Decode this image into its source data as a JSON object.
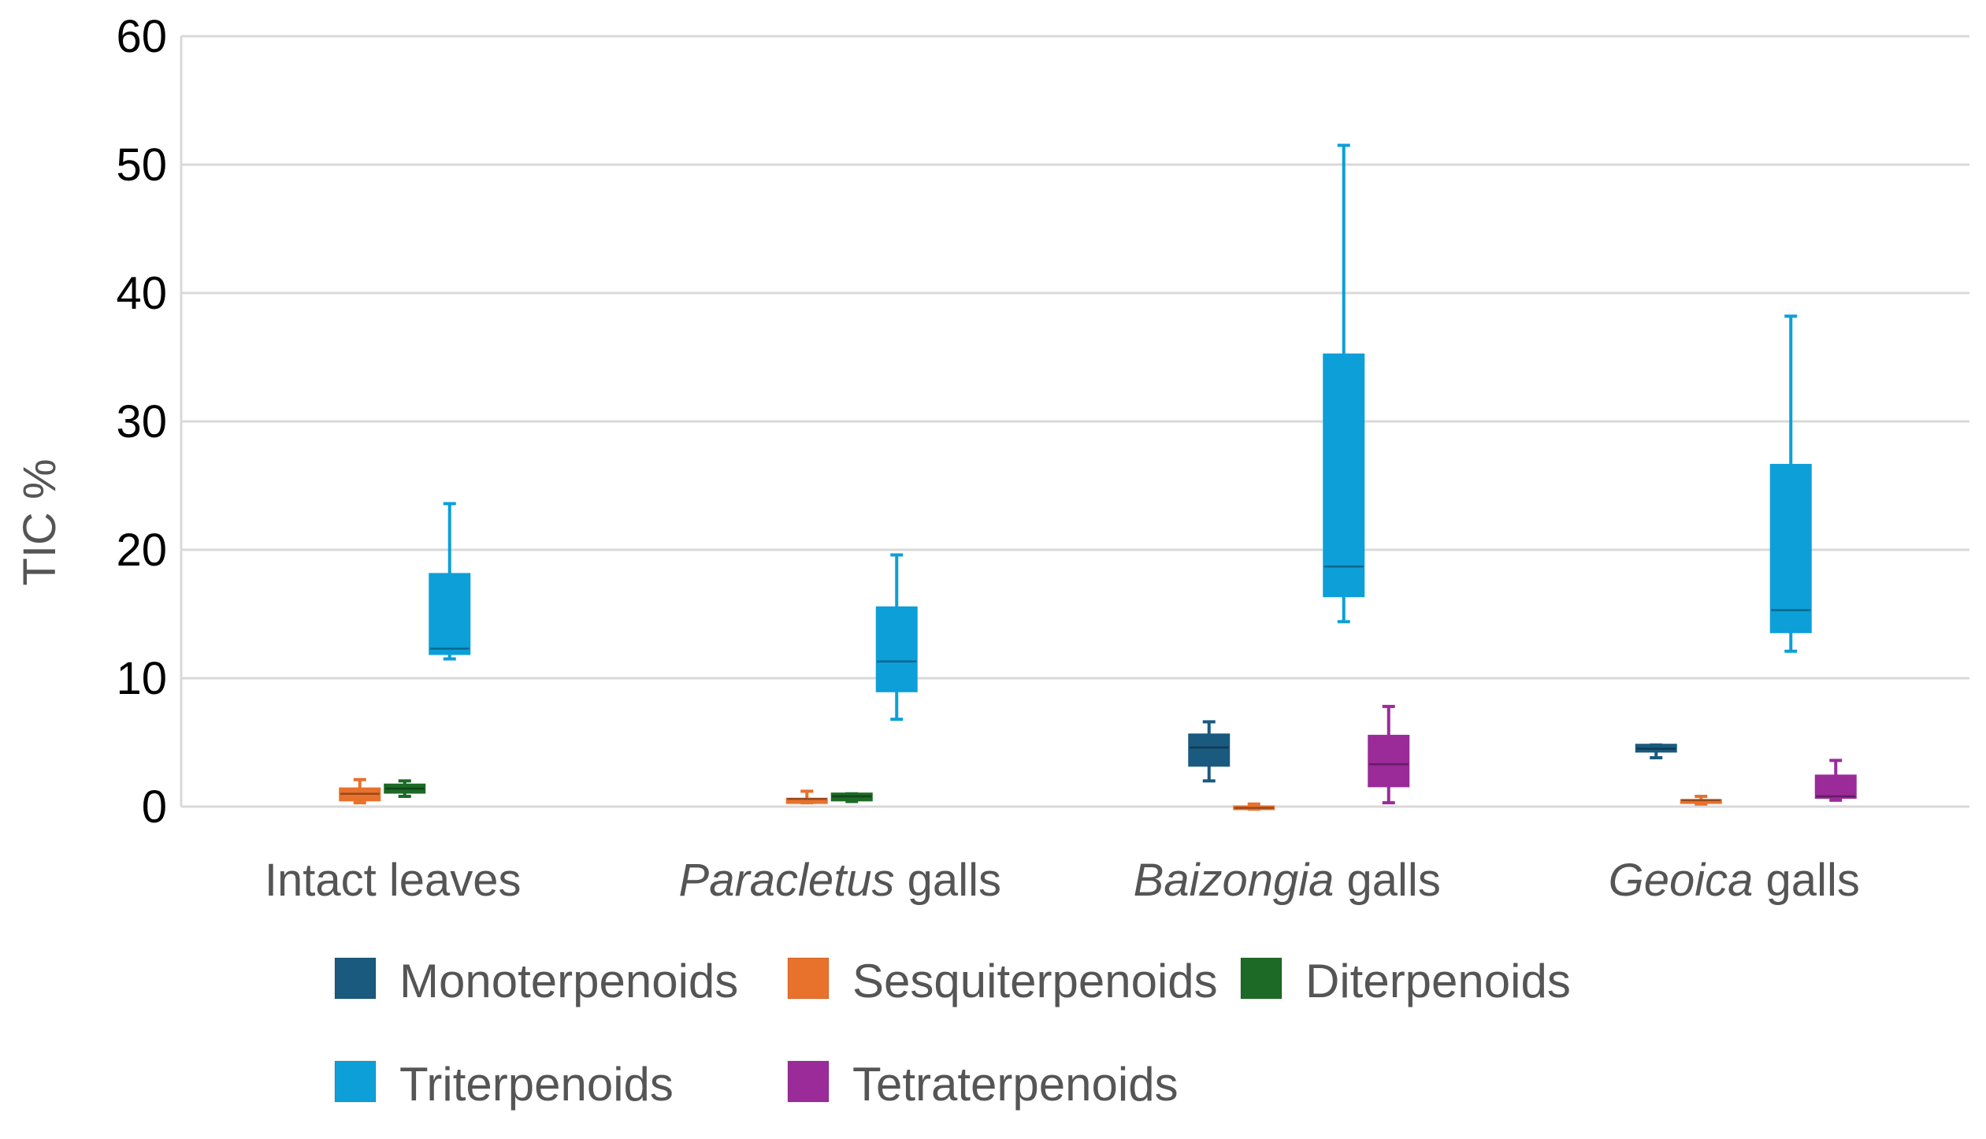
{
  "chart_data": {
    "type": "box",
    "title": "",
    "xlabel": "",
    "ylabel": "TIC %",
    "ylim": [
      0,
      60
    ],
    "yticks": [
      0,
      10,
      20,
      30,
      40,
      50,
      60
    ],
    "grid": true,
    "legend_position": "bottom",
    "categories": [
      {
        "parts": [
          {
            "text": "Intact leaves",
            "italic": false
          }
        ]
      },
      {
        "parts": [
          {
            "text": "Paracletus",
            "italic": true
          },
          {
            "text": " galls",
            "italic": false
          }
        ]
      },
      {
        "parts": [
          {
            "text": "Baizongia",
            "italic": true
          },
          {
            "text": " galls",
            "italic": false
          }
        ]
      },
      {
        "parts": [
          {
            "text": "Geoica",
            "italic": true
          },
          {
            "text": " galls",
            "italic": false
          }
        ]
      }
    ],
    "series": [
      {
        "name": "Monoterpenoids",
        "color": "#1a5a7e",
        "boxes": [
          null,
          null,
          {
            "min": 2.0,
            "q1": 3.2,
            "median": 4.6,
            "q3": 5.6,
            "max": 6.6
          },
          {
            "min": 3.8,
            "q1": 4.3,
            "median": 4.5,
            "q3": 4.8,
            "max": 4.8
          }
        ]
      },
      {
        "name": "Sesquiterpenoids",
        "color": "#e8712b",
        "boxes": [
          {
            "min": 0.3,
            "q1": 0.5,
            "median": 1.0,
            "q3": 1.4,
            "max": 2.1
          },
          {
            "min": 0.3,
            "q1": 0.3,
            "median": 0.6,
            "q3": 0.6,
            "max": 1.2
          },
          {
            "min": -0.2,
            "q1": -0.1,
            "median": -0.1,
            "q3": 0.0,
            "max": 0.2
          },
          {
            "min": 0.2,
            "q1": 0.3,
            "median": 0.5,
            "q3": 0.5,
            "max": 0.8
          }
        ]
      },
      {
        "name": "Diterpenoids",
        "color": "#1c6a25",
        "boxes": [
          {
            "min": 0.8,
            "q1": 1.1,
            "median": 1.4,
            "q3": 1.7,
            "max": 2.0
          },
          {
            "min": 0.4,
            "q1": 0.5,
            "median": 0.8,
            "q3": 1.0,
            "max": 1.0
          },
          null,
          null
        ]
      },
      {
        "name": "Triterpenoids",
        "color": "#0d9fd8",
        "boxes": [
          {
            "min": 11.5,
            "q1": 11.9,
            "median": 12.3,
            "q3": 18.1,
            "max": 23.6
          },
          {
            "min": 6.8,
            "q1": 9.0,
            "median": 11.3,
            "q3": 15.5,
            "max": 19.6
          },
          {
            "min": 14.4,
            "q1": 16.4,
            "median": 18.7,
            "q3": 35.2,
            "max": 51.5
          },
          {
            "min": 12.1,
            "q1": 13.6,
            "median": 15.3,
            "q3": 26.6,
            "max": 38.2
          }
        ]
      },
      {
        "name": "Tetraterpenoids",
        "color": "#9a2b99",
        "boxes": [
          null,
          null,
          {
            "min": 0.3,
            "q1": 1.6,
            "median": 3.3,
            "q3": 5.5,
            "max": 7.8
          },
          {
            "min": 0.5,
            "q1": 0.7,
            "median": 0.8,
            "q3": 2.4,
            "max": 3.6
          }
        ]
      }
    ]
  }
}
